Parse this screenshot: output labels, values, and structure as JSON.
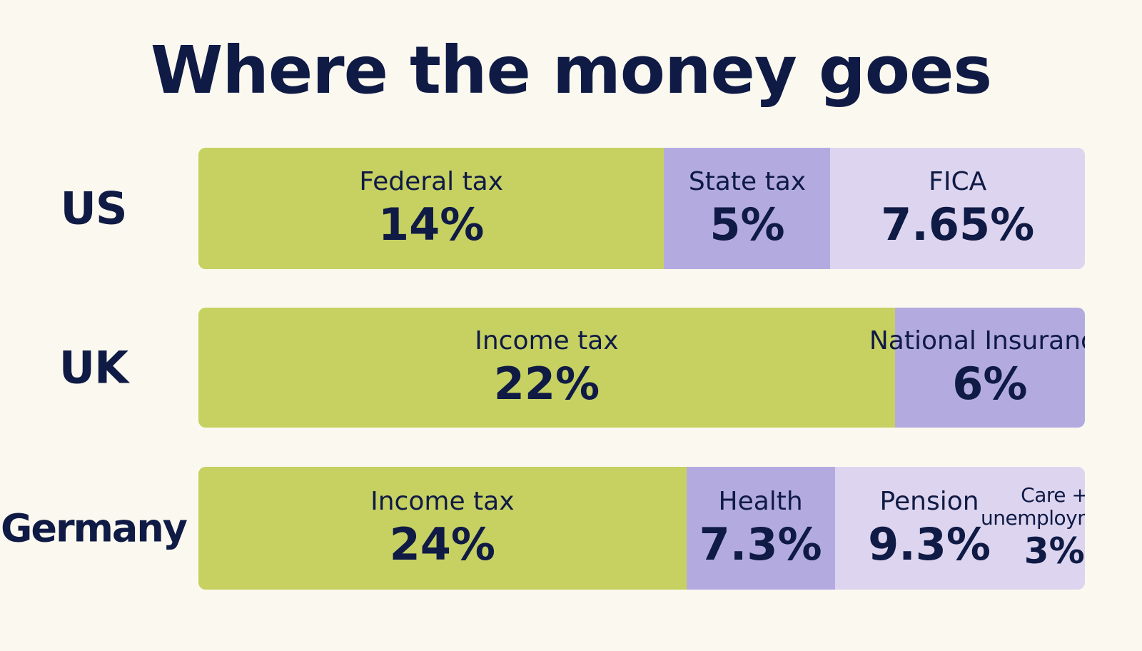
{
  "title": "Where the money goes",
  "colors": {
    "background": "#fbf9ef",
    "text": "#0f1a45",
    "lime": "#c6d162",
    "purple": "#b3abe0",
    "lilac": "#ddd5ef"
  },
  "chart_data": {
    "type": "bar",
    "orientation": "horizontal-stacked",
    "title": "Where the money goes",
    "categories": [
      "US",
      "UK",
      "Germany"
    ],
    "rows": [
      {
        "country": "US",
        "segments": [
          {
            "label": "Federal tax",
            "value": 14,
            "display": "14%",
            "color": "#c6d162"
          },
          {
            "label": "State tax",
            "value": 5,
            "display": "5%",
            "color": "#b3abe0"
          },
          {
            "label": "FICA",
            "value": 7.65,
            "display": "7.65%",
            "color": "#ddd5ef"
          }
        ]
      },
      {
        "country": "UK",
        "segments": [
          {
            "label": "Income tax",
            "value": 22,
            "display": "22%",
            "color": "#c6d162"
          },
          {
            "label": "National Insurance",
            "value": 6,
            "display": "6%",
            "color": "#b3abe0"
          }
        ]
      },
      {
        "country": "Germany",
        "segments": [
          {
            "label": "Income tax",
            "value": 24,
            "display": "24%",
            "color": "#c6d162"
          },
          {
            "label": "Health",
            "value": 7.3,
            "display": "7.3%",
            "color": "#b3abe0"
          },
          {
            "label": "Pension",
            "value": 9.3,
            "display": "9.3%",
            "color": "#ddd5ef"
          },
          {
            "label": "Care + unemployment",
            "value": 3,
            "display": "3%",
            "color": "#ddd5ef"
          }
        ]
      }
    ],
    "legend": "none",
    "grid": false
  }
}
